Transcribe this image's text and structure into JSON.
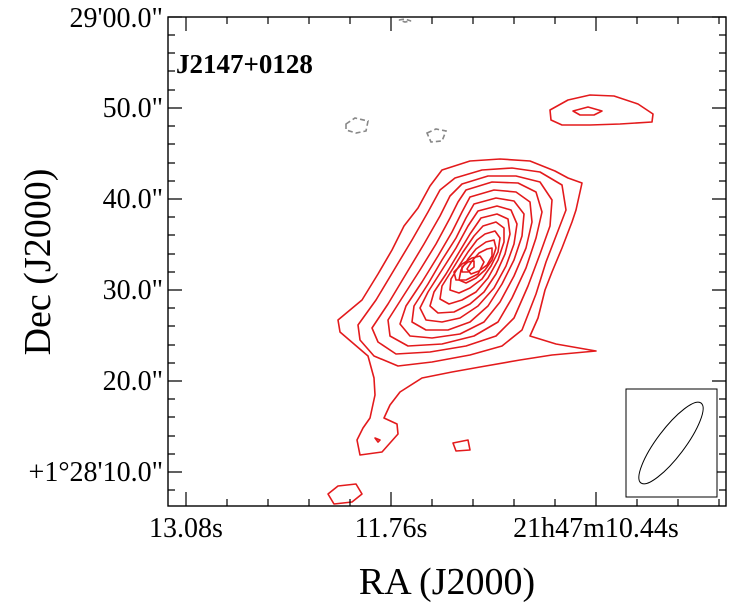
{
  "chart_data": {
    "type": "contour",
    "source_name": "J2147+0128",
    "xlabel": "RA (J2000)",
    "ylabel": "Dec (J2000)",
    "x_tick_labels": [
      "13.08s",
      "11.76s",
      "21h47m10.44s"
    ],
    "y_tick_labels": [
      "+1°28'10.0\"",
      "20.0\"",
      "30.0\"",
      "40.0\"",
      "50.0\"",
      "29'00.0\""
    ],
    "dec_range_arcsec": [
      6,
      62
    ],
    "ra_range_s": [
      13.26,
      10.06
    ],
    "peak_position": {
      "ra_s": 11.4,
      "dec_arcsec": 32
    },
    "positive_contour_levels": 14,
    "positive_contour_color": "#e31a1c",
    "negative_contour_color": "#888888",
    "negative_contour_style": "dashed",
    "beam_shown": true,
    "grid": false
  }
}
